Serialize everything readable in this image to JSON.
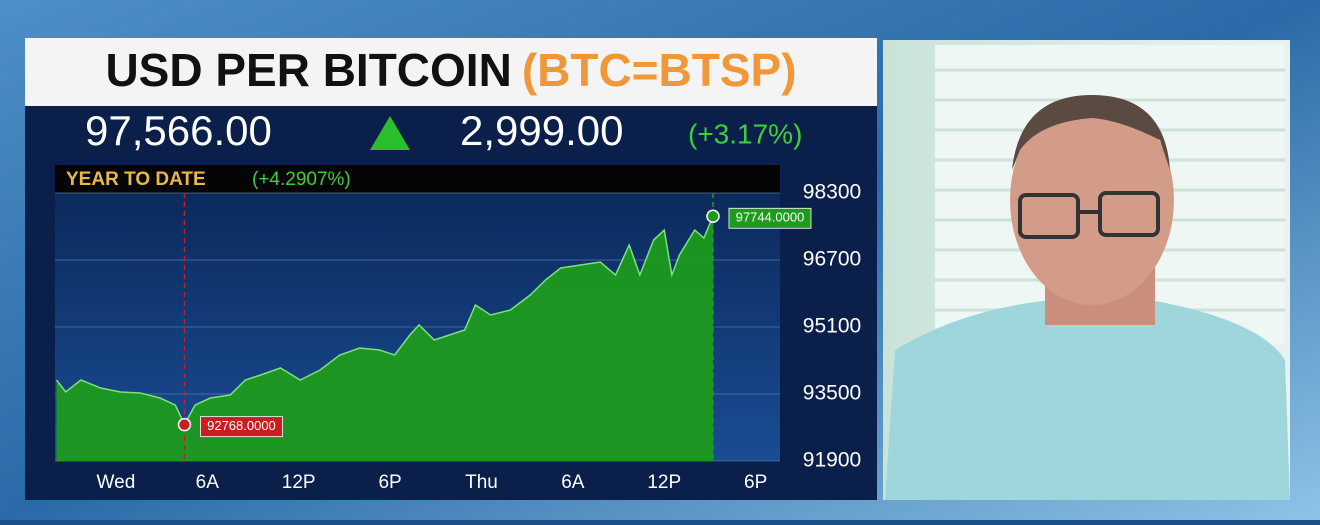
{
  "chart_data": {
    "type": "area",
    "title": "USD PER BITCOIN",
    "ticker": "(BTC=BTSP)",
    "price": "97,566.00",
    "change": "2,999.00",
    "change_pct": "(+3.17%)",
    "period": "YEAR TO DATE",
    "period_change": "(+4.2907%)",
    "x": [
      -3.9,
      -3.3,
      -2.3,
      -1.0,
      0.3,
      1.6,
      2.9,
      3.9,
      4.5,
      5.2,
      6.2,
      7.5,
      8.5,
      9.5,
      10.8,
      12.1,
      13.4,
      14.7,
      16.0,
      17.3,
      18.3,
      19.3,
      19.9,
      20.9,
      21.9,
      22.9,
      23.6,
      24.6,
      25.9,
      27.2,
      28.2,
      29.2,
      30.5,
      31.8,
      32.8,
      33.7,
      34.4,
      35.3,
      36.0,
      36.5,
      37.0,
      38.0,
      38.6,
      39.2
    ],
    "series": [
      {
        "color": "#1e9a1e",
        "values": [
          93834,
          93548,
          93834,
          93643,
          93548,
          93524,
          93404,
          93237,
          92768,
          93237,
          93404,
          93476,
          93834,
          93954,
          94121,
          93834,
          94073,
          94431,
          94598,
          94551,
          94431,
          94909,
          95148,
          94790,
          94909,
          95028,
          95625,
          95387,
          95506,
          95864,
          96222,
          96509,
          96581,
          96652,
          96342,
          97058,
          96342,
          97177,
          97416,
          96342,
          96819,
          97416,
          97225,
          97744
        ]
      }
    ],
    "annotations": [
      {
        "x": 4.5,
        "value": 92768,
        "label": "92768.0000",
        "color": "#c81e1e"
      },
      {
        "x": 39.2,
        "value": 97744,
        "label": "97744.0000",
        "color": "#1e9a1e"
      }
    ],
    "xlim": [
      -4,
      43.6
    ],
    "xticks": [
      {
        "value": 0,
        "label": "Wed"
      },
      {
        "value": 6,
        "label": "6A"
      },
      {
        "value": 12,
        "label": "12P"
      },
      {
        "value": 18,
        "label": "6P"
      },
      {
        "value": 24,
        "label": "Thu"
      },
      {
        "value": 30,
        "label": "6A"
      },
      {
        "value": 36,
        "label": "12P"
      },
      {
        "value": 42,
        "label": "6P"
      }
    ],
    "ylim": [
      91900,
      98300
    ],
    "yticks": [
      91900,
      93500,
      95100,
      96700,
      98300
    ],
    "grid": true
  }
}
